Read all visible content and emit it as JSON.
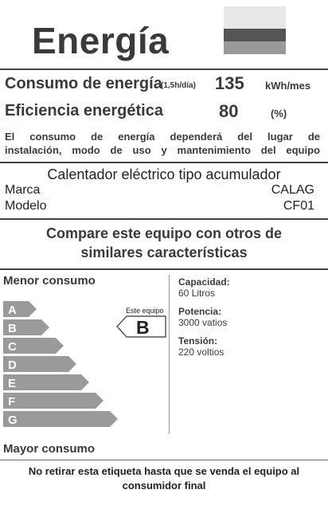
{
  "header": {
    "title": "Energía"
  },
  "consumo": {
    "label": "Consumo de energía",
    "period": "(1,5h/día)",
    "value": "135",
    "unit": "kWh/mes"
  },
  "eficiencia": {
    "label": "Eficiencia energética",
    "value": "80",
    "unit": "(%)"
  },
  "note": {
    "line1": "El consumo de energía dependerá del lugar de",
    "line2": "instalación, modo de uso y mantenimiento del equipo"
  },
  "product": {
    "title": "Calentador eléctrico tipo acumulador",
    "marca_label": "Marca",
    "marca_value": "CALAG",
    "modelo_label": "Modelo",
    "modelo_value": "CF01"
  },
  "compare": {
    "line1": "Compare este equipo con otros de",
    "line2": "similares características"
  },
  "scale": {
    "top_label": "Menor consumo",
    "bottom_label": "Mayor consumo",
    "classes": [
      "A",
      "B",
      "C",
      "D",
      "E",
      "F",
      "G"
    ],
    "this_label": "Este equipo",
    "this_class": "B"
  },
  "specs": {
    "capacidad_label": "Capacidad:",
    "capacidad_value": "60 Litros",
    "potencia_label": "Potencia:",
    "potencia_value": "3000 vatios",
    "tension_label": "Tensión:",
    "tension_value": "220 voltios"
  },
  "footer": {
    "line1": "No retirar esta etiqueta hasta que se venda el equipo al",
    "line2": "consumidor final"
  },
  "colors": {
    "flag_top": "#e8e8e8",
    "flag_mid": "#555555",
    "flag_bottom": "#9a9a9a",
    "bars": "#9a9a9a"
  }
}
